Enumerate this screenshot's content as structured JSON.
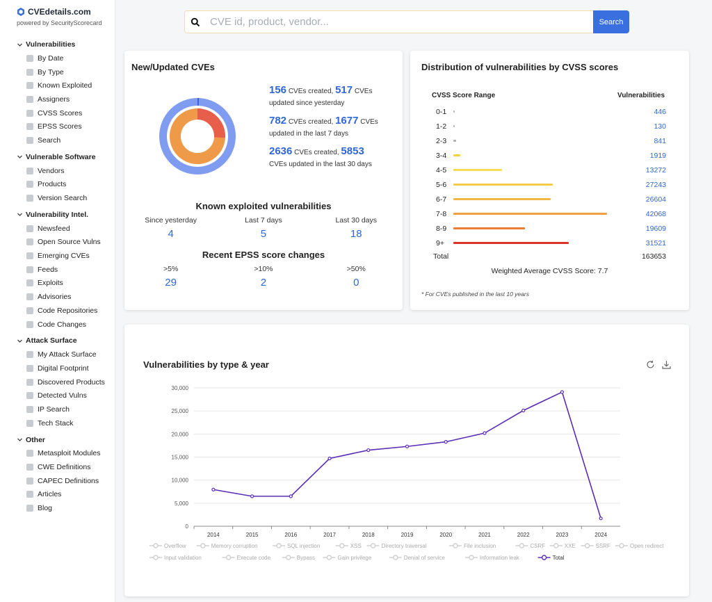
{
  "brand": {
    "name": "CVEdetails.com",
    "subtitle": "powered by SecurityScorecard"
  },
  "sidebar": {
    "sections": [
      {
        "label": "Vulnerabilities",
        "items": [
          "By Date",
          "By Type",
          "Known Exploited",
          "Assigners",
          "CVSS Scores",
          "EPSS Scores",
          "Search"
        ]
      },
      {
        "label": "Vulnerable Software",
        "items": [
          "Vendors",
          "Products",
          "Version Search"
        ]
      },
      {
        "label": "Vulnerability Intel.",
        "items": [
          "Newsfeed",
          "Open Source Vulns",
          "Emerging CVEs",
          "Feeds",
          "Exploits",
          "Advisories",
          "Code Repositories",
          "Code Changes"
        ]
      },
      {
        "label": "Attack Surface",
        "items": [
          "My Attack Surface",
          "Digital Footprint",
          "Discovered Products",
          "Detected Vulns",
          "IP Search",
          "Tech Stack"
        ]
      },
      {
        "label": "Other",
        "items": [
          "Metasploit Modules",
          "CWE Definitions",
          "CAPEC Definitions",
          "Articles",
          "Blog"
        ]
      }
    ]
  },
  "search": {
    "placeholder": "CVE id, product, vendor...",
    "button_label": "Search"
  },
  "new_cves": {
    "title": "New/Updated CVEs",
    "stats": [
      {
        "created": "156",
        "updated": "517",
        "created_word": "CVEs created,",
        "updated_word": "CVEs",
        "period": "updated since yesterday"
      },
      {
        "created": "782",
        "updated": "1677",
        "created_word": "CVEs created,",
        "updated_word": "CVEs",
        "period": "updated in the last 7 days"
      },
      {
        "created": "2636",
        "updated": "5853",
        "created_word": "CVEs created,",
        "updated_word": "",
        "period": "CVEs updated in the last 30 days"
      }
    ],
    "kev_title": "Known exploited vulnerabilities",
    "kev": [
      {
        "label": "Since yesterday",
        "value": "4"
      },
      {
        "label": "Last 7 days",
        "value": "5"
      },
      {
        "label": "Last 30 days",
        "value": "18"
      }
    ],
    "epss_title": "Recent EPSS score changes",
    "epss": [
      {
        "label": ">5%",
        "value": "29"
      },
      {
        "label": ">10%",
        "value": "2"
      },
      {
        "label": ">50%",
        "value": "0"
      }
    ]
  },
  "cvss": {
    "title": "Distribution of vulnerabilities by CVSS scores",
    "col_range": "CVSS Score Range",
    "col_count": "Vulnerabilities",
    "rows": [
      {
        "range": "0-1",
        "count": "446",
        "value": 446,
        "color": "#b0b0b0"
      },
      {
        "range": "1-2",
        "count": "130",
        "value": 130,
        "color": "#b0b0b0"
      },
      {
        "range": "2-3",
        "count": "841",
        "value": 841,
        "color": "#b0b0b0"
      },
      {
        "range": "3-4",
        "count": "1919",
        "value": 1919,
        "color": "#f4d03f"
      },
      {
        "range": "4-5",
        "count": "13272",
        "value": 13272,
        "color": "#f7dc5a"
      },
      {
        "range": "5-6",
        "count": "27243",
        "value": 27243,
        "color": "#f5cc4c"
      },
      {
        "range": "6-7",
        "count": "26604",
        "value": 26604,
        "color": "#f2b845"
      },
      {
        "range": "7-8",
        "count": "42068",
        "value": 42068,
        "color": "#f0a040"
      },
      {
        "range": "8-9",
        "count": "19609",
        "value": 19609,
        "color": "#ea7d33"
      },
      {
        "range": "9+",
        "count": "31521",
        "value": 31521,
        "color": "#d9352a"
      }
    ],
    "total_label": "Total",
    "total": "163653",
    "weighted_avg": "Weighted Average CVSS Score: 7.7",
    "footnote": "* For CVEs published in the last 10 years"
  },
  "chart_data": {
    "type": "line",
    "title": "Vulnerabilities by type & year",
    "x": [
      "2014",
      "2015",
      "2016",
      "2017",
      "2018",
      "2019",
      "2020",
      "2021",
      "2022",
      "2023",
      "2024"
    ],
    "series": [
      {
        "name": "Total",
        "values": [
          7950,
          6500,
          6500,
          14700,
          16500,
          17300,
          18300,
          20200,
          25100,
          29100,
          1700
        ],
        "color": "#5b2db8"
      }
    ],
    "ylim": [
      0,
      30000
    ],
    "yticks": [
      "0",
      "5,000",
      "10,000",
      "15,000",
      "20,000",
      "25,000",
      "30,000"
    ],
    "legend_inactive": [
      "Overflow",
      "Memory corruption",
      "SQL injection",
      "XSS",
      "Directory traversal",
      "File inclusion",
      "CSRF",
      "XXE",
      "SSRF",
      "Open redirect",
      "Input validation",
      "Execute code",
      "Bypass",
      "Gain privilege",
      "Denial of service",
      "Information leak"
    ],
    "legend_active": "Total",
    "grid": true
  }
}
